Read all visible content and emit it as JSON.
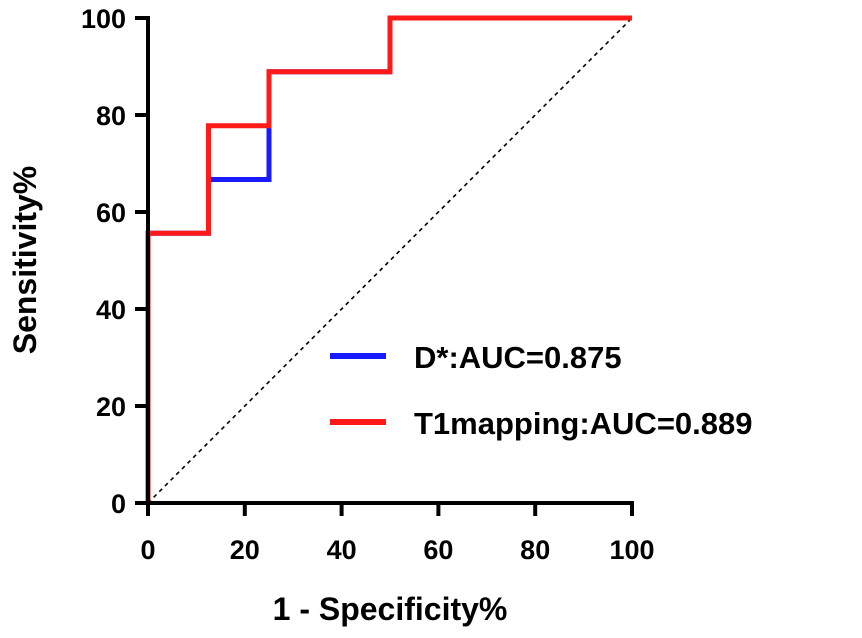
{
  "chart_data": {
    "type": "line",
    "title": "",
    "xlabel": "1 - Specificity%",
    "ylabel": "Sensitivity%",
    "xlim": [
      0,
      100
    ],
    "ylim": [
      0,
      100
    ],
    "xticks": [
      0,
      20,
      40,
      60,
      80,
      100
    ],
    "yticks": [
      0,
      20,
      40,
      60,
      80,
      100
    ],
    "xtick_labels": [
      "0",
      "20",
      "40",
      "60",
      "80",
      "100"
    ],
    "ytick_labels": [
      "0",
      "20",
      "40",
      "60",
      "80",
      "100"
    ],
    "reference_line": {
      "x": [
        0,
        100
      ],
      "y": [
        0,
        100
      ],
      "style": "dashed"
    },
    "legend_position": "bottom-right",
    "series": [
      {
        "name": "D*:AUC=0.875",
        "color": "#1a1aff",
        "x": [
          0,
          0,
          12.5,
          12.5,
          25,
          25,
          50,
          50,
          100
        ],
        "y": [
          0,
          55.6,
          55.6,
          66.7,
          66.7,
          88.9,
          88.9,
          100,
          100
        ]
      },
      {
        "name": "T1mapping:AUC=0.889",
        "color": "#ff1a1a",
        "x": [
          0,
          0,
          12.5,
          12.5,
          25,
          25,
          50,
          50,
          100
        ],
        "y": [
          0,
          55.6,
          55.6,
          77.8,
          77.8,
          88.9,
          88.9,
          100,
          100
        ]
      }
    ]
  }
}
